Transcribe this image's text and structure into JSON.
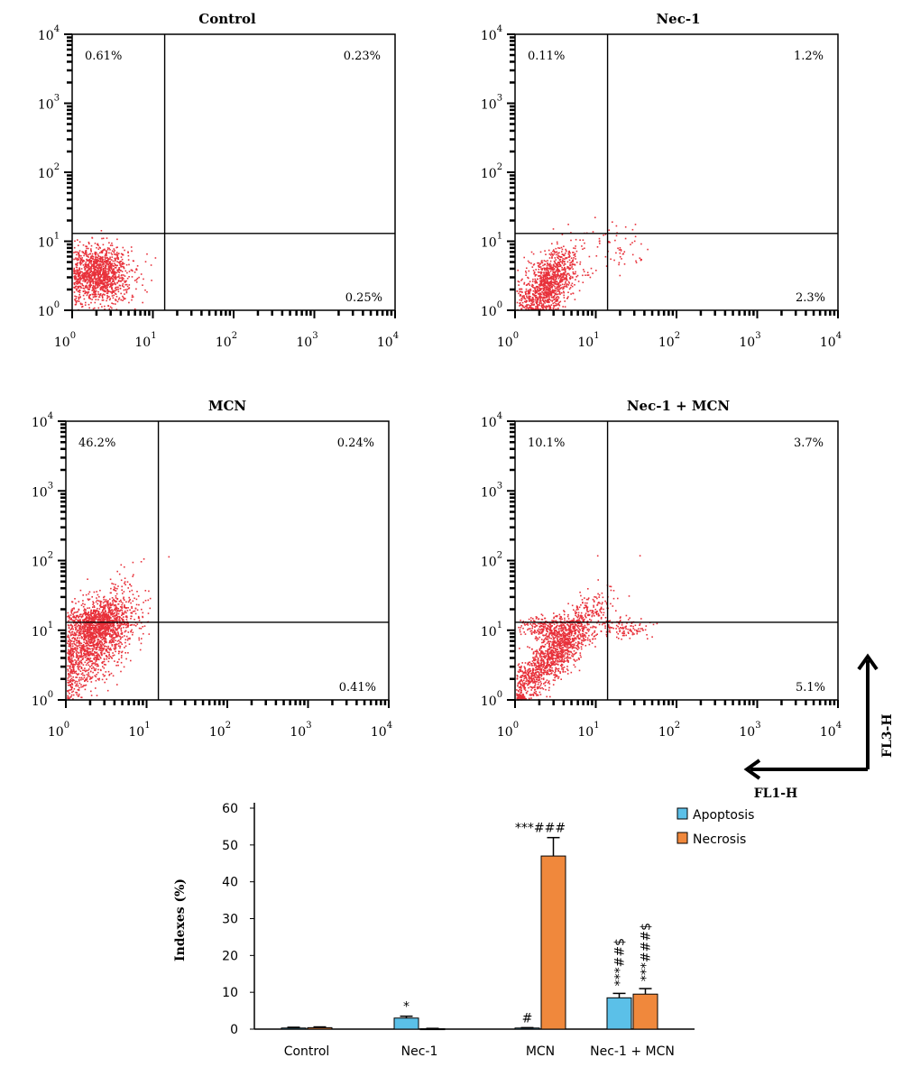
{
  "chart_data": [
    {
      "type": "scatter",
      "title": "Control",
      "axis_scale": "log",
      "xlim": [
        1,
        10000
      ],
      "ylim": [
        1,
        10000
      ],
      "tick_base": "10",
      "tick_exponents": [
        "0",
        "1",
        "2",
        "3",
        "4"
      ],
      "gates": {
        "x": 14,
        "y": 13
      },
      "quadrants": {
        "upper_left": "0.61%",
        "upper_right": "0.23%",
        "lower_right": "0.25%"
      }
    },
    {
      "type": "scatter",
      "title": "Nec-1",
      "axis_scale": "log",
      "xlim": [
        1,
        10000
      ],
      "ylim": [
        1,
        10000
      ],
      "tick_base": "10",
      "tick_exponents": [
        "0",
        "1",
        "2",
        "3",
        "4"
      ],
      "gates": {
        "x": 14,
        "y": 13
      },
      "quadrants": {
        "upper_left": "0.11%",
        "upper_right": "1.2%",
        "lower_right": "2.3%"
      }
    },
    {
      "type": "scatter",
      "title": "MCN",
      "axis_scale": "log",
      "xlim": [
        1,
        10000
      ],
      "ylim": [
        1,
        10000
      ],
      "tick_base": "10",
      "tick_exponents": [
        "0",
        "1",
        "2",
        "3",
        "4"
      ],
      "gates": {
        "x": 14,
        "y": 13
      },
      "quadrants": {
        "upper_left": "46.2%",
        "upper_right": "0.24%",
        "lower_right": "0.41%"
      }
    },
    {
      "type": "scatter",
      "title": "Nec-1 + MCN",
      "axis_scale": "log",
      "xlim": [
        1,
        10000
      ],
      "ylim": [
        1,
        10000
      ],
      "tick_base": "10",
      "tick_exponents": [
        "0",
        "1",
        "2",
        "3",
        "4"
      ],
      "gates": {
        "x": 14,
        "y": 13
      },
      "quadrants": {
        "upper_left": "10.1%",
        "upper_right": "3.7%",
        "lower_right": "5.1%"
      }
    },
    {
      "type": "bar",
      "categories": [
        "Control",
        "Nec-1",
        "MCN",
        "Nec-1 + MCN"
      ],
      "series": [
        {
          "name": "Apoptosis",
          "values": [
            0.3,
            3.0,
            0.3,
            8.5
          ],
          "errors": [
            0.2,
            0.5,
            0.1,
            1.2
          ],
          "color": "#5bc0e8"
        },
        {
          "name": "Necrosis",
          "values": [
            0.4,
            0.1,
            47,
            9.5
          ],
          "errors": [
            0.2,
            0.1,
            5,
            1.5
          ],
          "color": "#f0883c"
        }
      ],
      "significance": [
        [
          "",
          ""
        ],
        [
          "*",
          ""
        ],
        [
          "#",
          "***###"
        ],
        [
          "***##$",
          "***###$"
        ]
      ],
      "ylabel": "Indexes (%)",
      "ylim": [
        0,
        60
      ],
      "yticks": [
        "0",
        "10",
        "20",
        "30",
        "40",
        "50",
        "60"
      ],
      "legend_position": "top-right"
    }
  ],
  "axis_indicator": {
    "x_label": "FL1-H",
    "y_label": "FL3-H"
  },
  "colors": {
    "dots": "#e8313a",
    "axes": "#000000"
  }
}
